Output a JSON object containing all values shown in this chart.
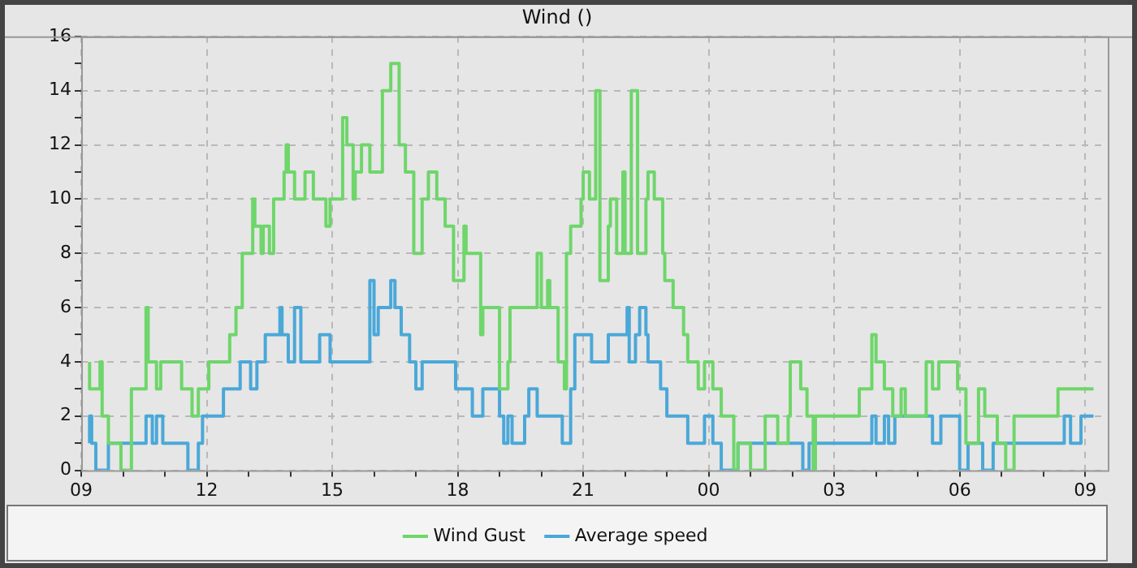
{
  "chart_data": {
    "type": "step",
    "title": "Wind ()",
    "xlim": [
      9,
      33.54
    ],
    "ylim": [
      0,
      16
    ],
    "xticks": [
      {
        "value": 9,
        "label": "09"
      },
      {
        "value": 10,
        "label": null
      },
      {
        "value": 11,
        "label": null
      },
      {
        "value": 12,
        "label": "12"
      },
      {
        "value": 13,
        "label": null
      },
      {
        "value": 14,
        "label": null
      },
      {
        "value": 15,
        "label": "15"
      },
      {
        "value": 16,
        "label": null
      },
      {
        "value": 17,
        "label": null
      },
      {
        "value": 18,
        "label": "18"
      },
      {
        "value": 19,
        "label": null
      },
      {
        "value": 20,
        "label": null
      },
      {
        "value": 21,
        "label": "21"
      },
      {
        "value": 22,
        "label": null
      },
      {
        "value": 23,
        "label": null
      },
      {
        "value": 24,
        "label": "00"
      },
      {
        "value": 25,
        "label": null
      },
      {
        "value": 26,
        "label": null
      },
      {
        "value": 27,
        "label": "03"
      },
      {
        "value": 28,
        "label": null
      },
      {
        "value": 29,
        "label": null
      },
      {
        "value": 30,
        "label": "06"
      },
      {
        "value": 31,
        "label": null
      },
      {
        "value": 32,
        "label": null
      },
      {
        "value": 33,
        "label": "09"
      }
    ],
    "yticks": [
      0,
      {
        "value": 1,
        "label": null
      },
      2,
      {
        "value": 3,
        "label": null
      },
      4,
      {
        "value": 5,
        "label": null
      },
      6,
      {
        "value": 7,
        "label": null
      },
      8,
      {
        "value": 9,
        "label": null
      },
      10,
      {
        "value": 11,
        "label": null
      },
      12,
      {
        "value": 13,
        "label": null
      },
      14,
      {
        "value": 15,
        "label": null
      },
      16
    ],
    "grid": true,
    "legend": "bottom",
    "series": [
      {
        "name": "Wind Gust",
        "color": "#6ed66a",
        "x": [
          9.2,
          9.45,
          9.5,
          9.65,
          9.95,
          10.2,
          10.55,
          10.6,
          10.8,
          10.9,
          11.4,
          11.65,
          11.8,
          12.05,
          12.55,
          12.7,
          12.85,
          13.1,
          13.15,
          13.3,
          13.35,
          13.5,
          13.6,
          13.85,
          13.9,
          13.95,
          14.1,
          14.35,
          14.55,
          14.85,
          14.95,
          15.25,
          15.35,
          15.5,
          15.55,
          15.7,
          15.9,
          16.2,
          16.4,
          16.6,
          16.75,
          16.95,
          17.15,
          17.3,
          17.5,
          17.7,
          17.9,
          18.15,
          18.2,
          18.55,
          18.6,
          19.0,
          19.2,
          19.25,
          19.9,
          20.0,
          20.15,
          20.2,
          20.4,
          20.55,
          20.6,
          20.7,
          20.95,
          21.0,
          21.15,
          21.3,
          21.4,
          21.6,
          21.65,
          21.8,
          21.95,
          22.0,
          22.15,
          22.3,
          22.5,
          22.55,
          22.7,
          22.9,
          22.95,
          23.15,
          23.4,
          23.5,
          23.75,
          23.9,
          24.1,
          24.3,
          24.6,
          24.7,
          25.0,
          25.35,
          25.65,
          25.9,
          25.95,
          26.2,
          26.35,
          26.5,
          26.55,
          27.6,
          27.9,
          28.0,
          28.2,
          28.4,
          28.6,
          28.7,
          29.2,
          29.35,
          29.5,
          29.95,
          30.15,
          30.45,
          30.6,
          30.9,
          31.1,
          31.3,
          32.35,
          32.5,
          33.2
        ],
        "values": [
          4,
          3,
          4,
          2,
          1,
          0,
          3,
          6,
          4,
          3,
          4,
          3,
          2,
          3,
          4,
          5,
          6,
          8,
          10,
          9,
          8,
          9,
          8,
          10,
          11,
          12,
          11,
          10,
          11,
          10,
          9,
          10,
          13,
          12,
          10,
          11,
          12,
          11,
          14,
          15,
          12,
          11,
          8,
          10,
          11,
          10,
          9,
          7,
          9,
          8,
          5,
          6,
          3,
          4,
          6,
          8,
          6,
          7,
          6,
          4,
          3,
          8,
          9,
          10,
          11,
          10,
          14,
          7,
          9,
          10,
          8,
          11,
          8,
          14,
          8,
          10,
          11,
          10,
          8,
          7,
          6,
          5,
          4,
          3,
          4,
          3,
          2,
          0,
          1,
          0,
          2,
          1,
          2,
          4,
          3,
          2,
          0,
          2,
          3,
          5,
          4,
          3,
          2,
          3,
          2,
          4,
          3,
          4,
          3,
          1,
          3,
          2,
          1,
          0,
          2,
          3,
          3
        ]
      },
      {
        "name": "Average speed",
        "color": "#4aa8d8",
        "x": [
          9.2,
          9.25,
          9.35,
          9.65,
          10.55,
          10.7,
          10.8,
          10.95,
          11.55,
          11.8,
          11.9,
          12.4,
          12.8,
          13.05,
          13.2,
          13.4,
          13.75,
          13.8,
          13.95,
          14.1,
          14.25,
          14.7,
          14.95,
          15.55,
          15.9,
          16.0,
          16.1,
          16.3,
          16.4,
          16.5,
          16.65,
          16.85,
          17.0,
          17.15,
          17.3,
          17.95,
          18.35,
          18.6,
          19.0,
          19.1,
          19.2,
          19.3,
          19.6,
          19.7,
          19.9,
          20.5,
          20.7,
          20.8,
          21.2,
          21.6,
          22.05,
          22.1,
          22.25,
          22.35,
          22.5,
          22.55,
          22.85,
          23.0,
          23.5,
          23.9,
          24.1,
          24.3,
          24.7,
          26.25,
          26.4,
          27.9,
          28.0,
          28.2,
          28.3,
          28.45,
          29.35,
          29.55,
          30.0,
          30.2,
          30.55,
          30.8,
          32.5,
          32.65,
          32.9,
          33.15,
          33.2
        ],
        "values": [
          1,
          2,
          1,
          0,
          1,
          2,
          1,
          2,
          1,
          0,
          1,
          2,
          3,
          4,
          3,
          4,
          5,
          6,
          5,
          4,
          6,
          4,
          5,
          4,
          4,
          7,
          5,
          6,
          6,
          7,
          6,
          5,
          4,
          3,
          4,
          4,
          3,
          2,
          3,
          2,
          1,
          2,
          1,
          2,
          3,
          2,
          1,
          3,
          5,
          4,
          5,
          6,
          4,
          5,
          6,
          5,
          4,
          3,
          2,
          1,
          2,
          1,
          0,
          1,
          0,
          1,
          2,
          1,
          2,
          1,
          2,
          1,
          2,
          0,
          1,
          0,
          1,
          2,
          1,
          2,
          2
        ]
      }
    ]
  }
}
